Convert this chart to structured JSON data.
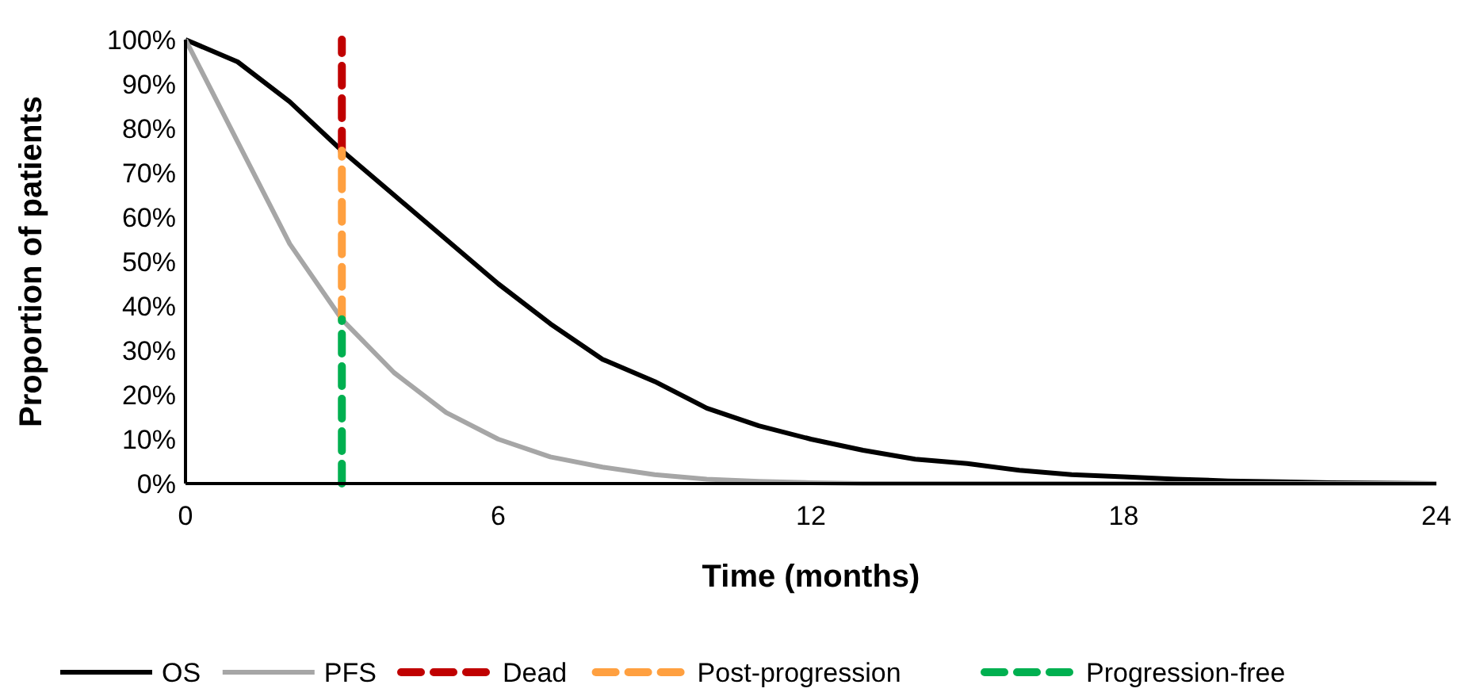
{
  "chart_data": {
    "type": "line",
    "xlabel": "Time (months)",
    "ylabel": "Proportion of patients",
    "xlim": [
      0,
      24
    ],
    "xticks": [
      0,
      6,
      12,
      18,
      24
    ],
    "ylim": [
      0,
      100
    ],
    "yticks": [
      {
        "value": 0,
        "label": "0%"
      },
      {
        "value": 10,
        "label": "10%"
      },
      {
        "value": 20,
        "label": "20%"
      },
      {
        "value": 30,
        "label": "30%"
      },
      {
        "value": 40,
        "label": "40%"
      },
      {
        "value": 50,
        "label": "50%"
      },
      {
        "value": 60,
        "label": "60%"
      },
      {
        "value": 70,
        "label": "70%"
      },
      {
        "value": 80,
        "label": "80%"
      },
      {
        "value": 90,
        "label": "90%"
      },
      {
        "value": 100,
        "label": "100%"
      }
    ],
    "grid": false,
    "legend": "bottom",
    "marker": "none",
    "series": [
      {
        "name": "OS",
        "color": "#000000",
        "line_style": "solid",
        "x": [
          0,
          1,
          2,
          3,
          4,
          5,
          6,
          7,
          8,
          9,
          10,
          11,
          12,
          13,
          14,
          15,
          16,
          17,
          18,
          19,
          20,
          21,
          22,
          23,
          24
        ],
        "values": [
          100,
          95,
          86,
          75,
          65,
          55,
          45,
          36,
          28,
          23,
          17,
          13,
          10,
          7.5,
          5.5,
          4.5,
          3,
          2,
          1.5,
          1,
          0.6,
          0.4,
          0.2,
          0.1,
          0
        ]
      },
      {
        "name": "PFS",
        "color": "#a6a6a6",
        "line_style": "solid",
        "x": [
          0,
          1,
          2,
          3,
          4,
          5,
          6,
          7,
          8,
          9,
          10,
          11,
          12,
          13,
          14,
          15,
          16,
          17,
          18,
          19,
          20,
          21,
          22,
          23,
          24
        ],
        "values": [
          100,
          77,
          54,
          37,
          25,
          16,
          10,
          6,
          3.7,
          2,
          1,
          0.5,
          0.2,
          0,
          0,
          0,
          0,
          0,
          0,
          0,
          0,
          0,
          0,
          0,
          0
        ]
      },
      {
        "name": "Dead",
        "color": "#c00000",
        "line_style": "dashed",
        "x": [
          3,
          3
        ],
        "values": [
          75,
          100
        ]
      },
      {
        "name": "Post-progression",
        "color": "#ffa040",
        "line_style": "dashed",
        "x": [
          3,
          3
        ],
        "values": [
          37,
          75
        ]
      },
      {
        "name": "Progression-free",
        "color": "#00b050",
        "line_style": "dashed",
        "x": [
          3,
          3
        ],
        "values": [
          0,
          37
        ]
      }
    ]
  }
}
